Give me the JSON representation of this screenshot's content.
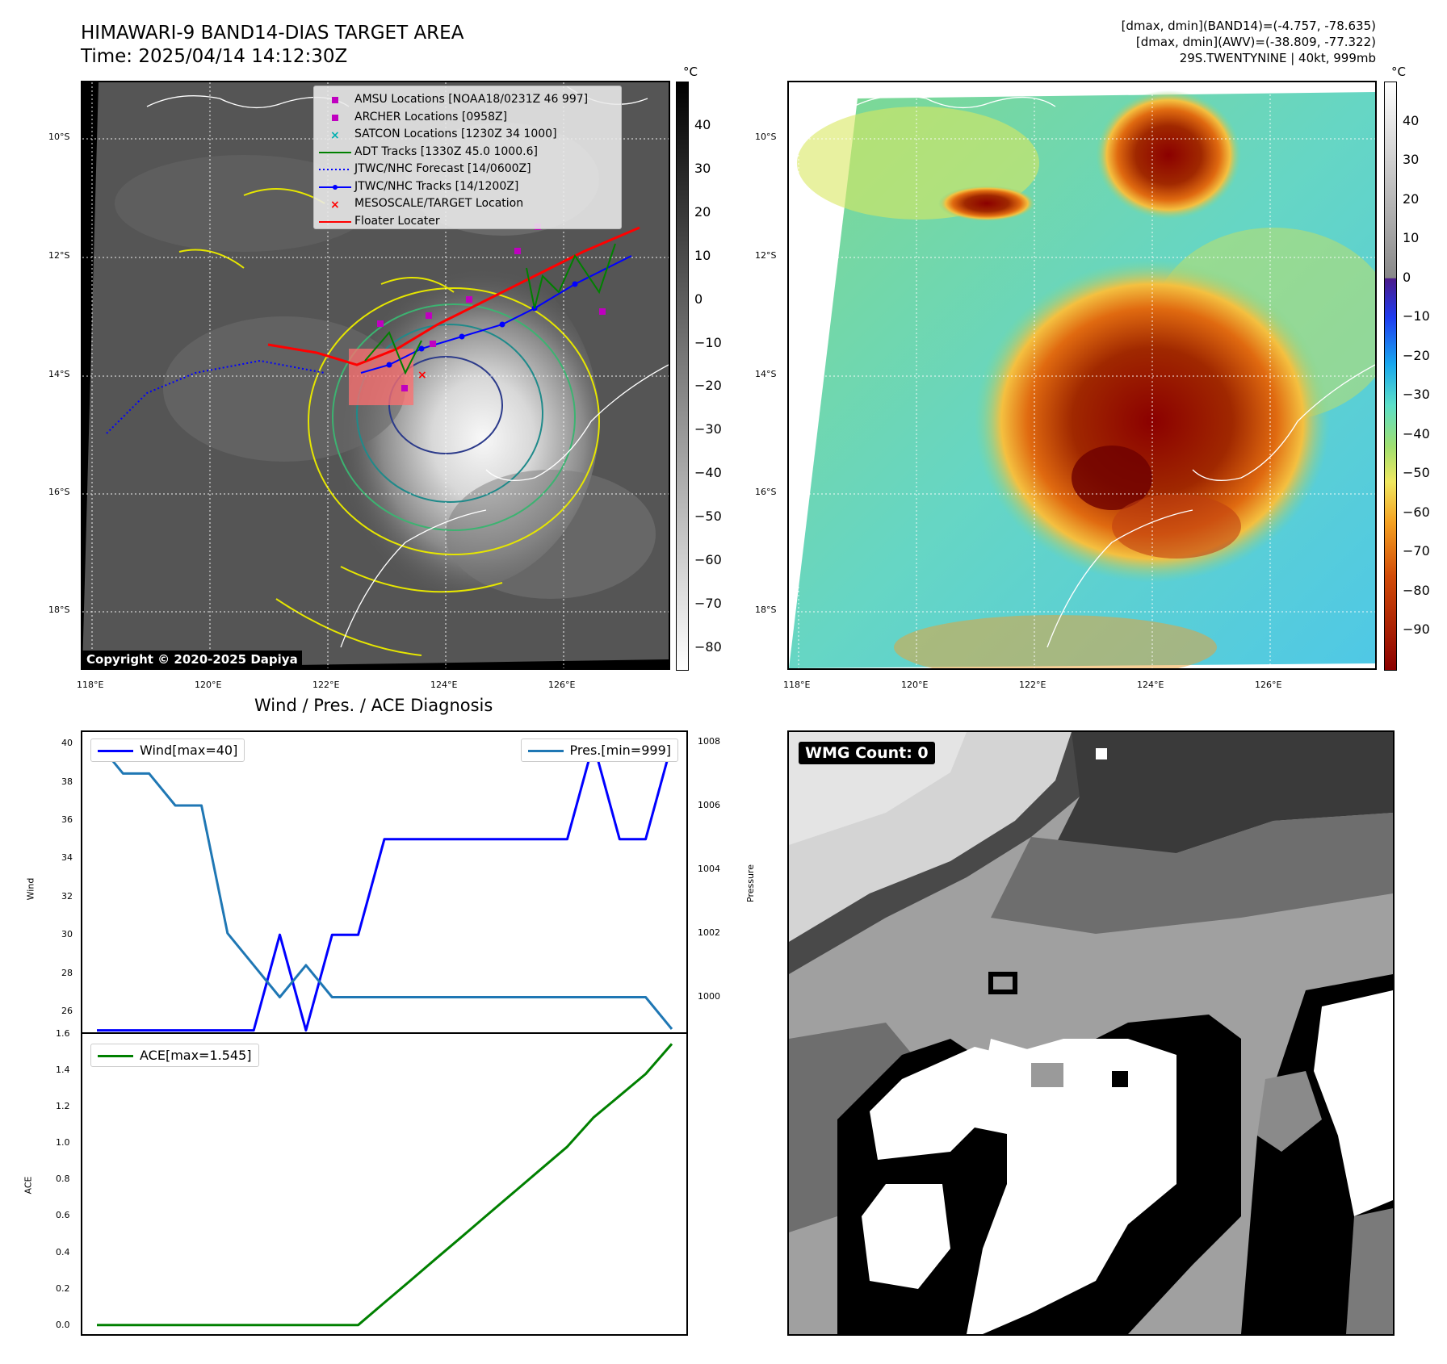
{
  "header": {
    "title_line1": "HIMAWARI-9 BAND14-DIAS TARGET AREA",
    "title_line2": "Time: 2025/04/14 14:12:30Z",
    "right_line1": "[dmax, dmin](BAND14)=(-4.757, -78.635)",
    "right_line2": "[dmax, dmin](AWV)=(-38.809, -77.322)",
    "right_line3": "29S.TWENTYNINE | 40kt, 999mb"
  },
  "map_axes": {
    "lat_ticks": [
      "10°S",
      "12°S",
      "14°S",
      "16°S",
      "18°S"
    ],
    "lon_ticks": [
      "118°E",
      "120°E",
      "122°E",
      "124°E",
      "126°E"
    ]
  },
  "colorbar_left": {
    "unit": "°C",
    "ticks": [
      "40",
      "30",
      "20",
      "10",
      "0",
      "−10",
      "−20",
      "−30",
      "−40",
      "−50",
      "−60",
      "−70",
      "−80"
    ],
    "range": [
      -85,
      50
    ]
  },
  "colorbar_right": {
    "unit": "°C",
    "ticks": [
      "40",
      "30",
      "20",
      "10",
      "0",
      "−10",
      "−20",
      "−30",
      "−40",
      "−50",
      "−60",
      "−70",
      "−80",
      "−90"
    ],
    "range": [
      -100,
      50
    ]
  },
  "legend": [
    {
      "label": "AMSU Locations [NOAA18/0231Z 46 997]",
      "marker": "square",
      "color": "#c000c0"
    },
    {
      "label": "ARCHER Locations [0958Z]",
      "marker": "square",
      "color": "#c000c0"
    },
    {
      "label": "SATCON Locations [1230Z 34 1000]",
      "marker": "x",
      "color": "#00b0b0"
    },
    {
      "label": "ADT Tracks [1330Z 45.0 1000.6]",
      "marker": "line",
      "color": "#008000"
    },
    {
      "label": "JTWC/NHC Forecast [14/0600Z]",
      "marker": "dotted",
      "color": "#0000ff"
    },
    {
      "label": "JTWC/NHC Tracks [14/1200Z]",
      "marker": "line-dot",
      "color": "#0000ff"
    },
    {
      "label": "MESOSCALE/TARGET Location",
      "marker": "x",
      "color": "#ff0000"
    },
    {
      "label": "Floater Locater",
      "marker": "line",
      "color": "#ff0000"
    }
  ],
  "copyright": "Copyright © 2020-2025 Dapiya",
  "diagnosis": {
    "title": "Wind / Pres. / ACE Diagnosis",
    "wind_axis_label": "Wind",
    "pressure_axis_label": "Pressure",
    "ace_axis_label": "ACE",
    "wind_legend": "Wind[max=40]",
    "pres_legend": "Pres.[min=999]",
    "ace_legend": "ACE[max=1.545]",
    "wind_ticks": [
      "40",
      "38",
      "36",
      "34",
      "32",
      "30",
      "28",
      "26"
    ],
    "pres_ticks": [
      "1008",
      "1006",
      "1004",
      "1002",
      "1000"
    ],
    "ace_ticks": [
      "1.6",
      "1.4",
      "1.2",
      "1.0",
      "0.8",
      "0.6",
      "0.4",
      "0.2",
      "0.0"
    ]
  },
  "wmg": {
    "label": "WMG Count: 0"
  },
  "chart_data": [
    {
      "type": "line",
      "title": "Wind / Pres. / ACE Diagnosis",
      "x": [
        0,
        1,
        2,
        3,
        4,
        5,
        6,
        7,
        8,
        9,
        10,
        11,
        12,
        13,
        14,
        15,
        16,
        17,
        18,
        19,
        20,
        21,
        22
      ],
      "series": [
        {
          "name": "Wind[max=40]",
          "axis": "left",
          "color": "#0000ff",
          "values": [
            25,
            25,
            25,
            25,
            25,
            25,
            25,
            30,
            25,
            30,
            30,
            35,
            35,
            35,
            35,
            35,
            35,
            35,
            35,
            40,
            35,
            35,
            40
          ]
        },
        {
          "name": "Pres.[min=999]",
          "axis": "right",
          "color": "#1f77b4",
          "values": [
            1008,
            1007,
            1007,
            1006,
            1006,
            1002,
            1001,
            1000,
            1001,
            1000,
            1000,
            1000,
            1000,
            1000,
            1000,
            1000,
            1000,
            1000,
            1000,
            1000,
            1000,
            1000,
            999
          ]
        }
      ],
      "ylabel": "Wind",
      "ylim": [
        24.9,
        40.6
      ],
      "y2label": "Pressure",
      "y2lim": [
        998.9,
        1008.3
      ]
    },
    {
      "type": "line",
      "x": [
        0,
        1,
        2,
        3,
        4,
        5,
        6,
        7,
        8,
        9,
        10,
        11,
        12,
        13,
        14,
        15,
        16,
        17,
        18,
        19,
        20,
        21,
        22
      ],
      "series": [
        {
          "name": "ACE[max=1.545]",
          "color": "#008000",
          "values": [
            0,
            0,
            0,
            0,
            0,
            0,
            0,
            0,
            0,
            0,
            0,
            0.123,
            0.245,
            0.368,
            0.49,
            0.613,
            0.735,
            0.858,
            0.98,
            1.14,
            1.26,
            1.38,
            1.545
          ]
        }
      ],
      "ylabel": "ACE",
      "ylim": [
        -0.05,
        1.6
      ]
    }
  ]
}
